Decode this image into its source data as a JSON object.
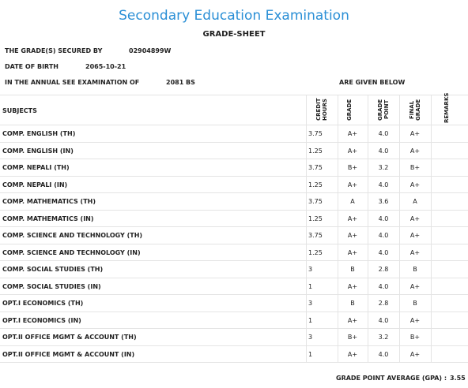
{
  "header": {
    "title": "Secondary Education Examination",
    "subtitle": "GRADE-SHEET"
  },
  "info": [
    {
      "label": "THE GRADE(S) SECURED BY",
      "value": "02904899W"
    },
    {
      "label": "DATE OF BIRTH",
      "value": "2065-10-21"
    },
    {
      "label": "IN THE ANNUAL SEE EXAMINATION OF",
      "value": "2081 BS",
      "suffix": "ARE GIVEN BELOW"
    }
  ],
  "table": {
    "columns": [
      "SUBJECTS",
      "CREDIT HOURS",
      "GRADE",
      "GRADE POINT",
      "FINAL GRADE",
      "REMARKS"
    ],
    "rows": [
      [
        "COMP. ENGLISH (TH)",
        "3.75",
        "A+",
        "4.0",
        "A+"
      ],
      [
        "COMP. ENGLISH (IN)",
        "1.25",
        "A+",
        "4.0",
        "A+"
      ],
      [
        "COMP. NEPALI (TH)",
        "3.75",
        "B+",
        "3.2",
        "B+"
      ],
      [
        "COMP. NEPALI (IN)",
        "1.25",
        "A+",
        "4.0",
        "A+"
      ],
      [
        "COMP. MATHEMATICS (TH)",
        "3.75",
        "A",
        "3.6",
        "A"
      ],
      [
        "COMP. MATHEMATICS (IN)",
        "1.25",
        "A+",
        "4.0",
        "A+"
      ],
      [
        "COMP. SCIENCE AND TECHNOLOGY (TH)",
        "3.75",
        "A+",
        "4.0",
        "A+"
      ],
      [
        "COMP. SCIENCE AND TECHNOLOGY (IN)",
        "1.25",
        "A+",
        "4.0",
        "A+"
      ],
      [
        "COMP. SOCIAL STUDIES (TH)",
        "3",
        "B",
        "2.8",
        "B"
      ],
      [
        "COMP. SOCIAL STUDIES (IN)",
        "1",
        "A+",
        "4.0",
        "A+"
      ],
      [
        "OPT.I ECONOMICS (TH)",
        "3",
        "B",
        "2.8",
        "B"
      ],
      [
        "OPT.I ECONOMICS (IN)",
        "1",
        "A+",
        "4.0",
        "A+"
      ],
      [
        "OPT.II OFFICE MGMT & ACCOUNT (TH)",
        "3",
        "B+",
        "3.2",
        "B+"
      ],
      [
        "OPT.II OFFICE MGMT & ACCOUNT (IN)",
        "1",
        "A+",
        "4.0",
        "A+"
      ]
    ]
  },
  "footer": {
    "label": "GRADE POINT AVERAGE (GPA) :",
    "value": "3.55"
  }
}
